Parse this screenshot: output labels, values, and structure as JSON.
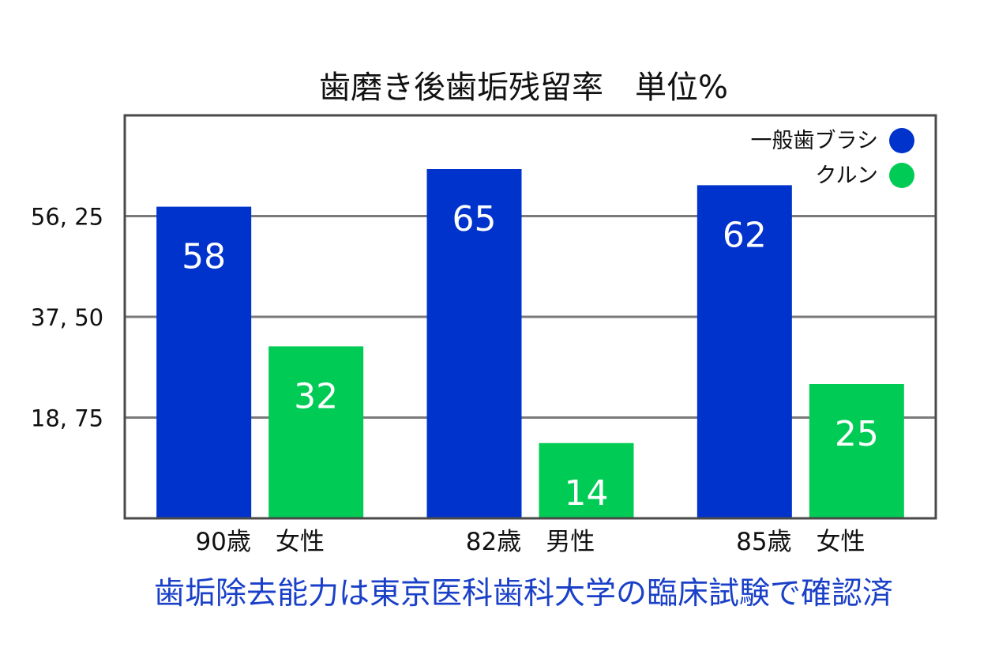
{
  "chart_data": {
    "type": "bar",
    "title": "歯磨き後歯垢残留率　単位%",
    "categories": [
      "90歳　女性",
      "82歳　男性",
      "85歳　女性"
    ],
    "series": [
      {
        "name": "一般歯ブラシ",
        "color": "#0033cc",
        "values": [
          58,
          65,
          62
        ]
      },
      {
        "name": "クルン",
        "color": "#00cc55",
        "values": [
          32,
          14,
          25
        ]
      }
    ],
    "y_ticks": [
      {
        "value": 18.75,
        "label": "18, 75"
      },
      {
        "value": 37.5,
        "label": "37, 50"
      },
      {
        "value": 56.25,
        "label": "56, 25"
      }
    ],
    "ylim": [
      0,
      75
    ],
    "grid": true,
    "legend_position": "top-right"
  },
  "footnote": "歯垢除去能力は東京医科歯科大学の臨床試験で確認済"
}
